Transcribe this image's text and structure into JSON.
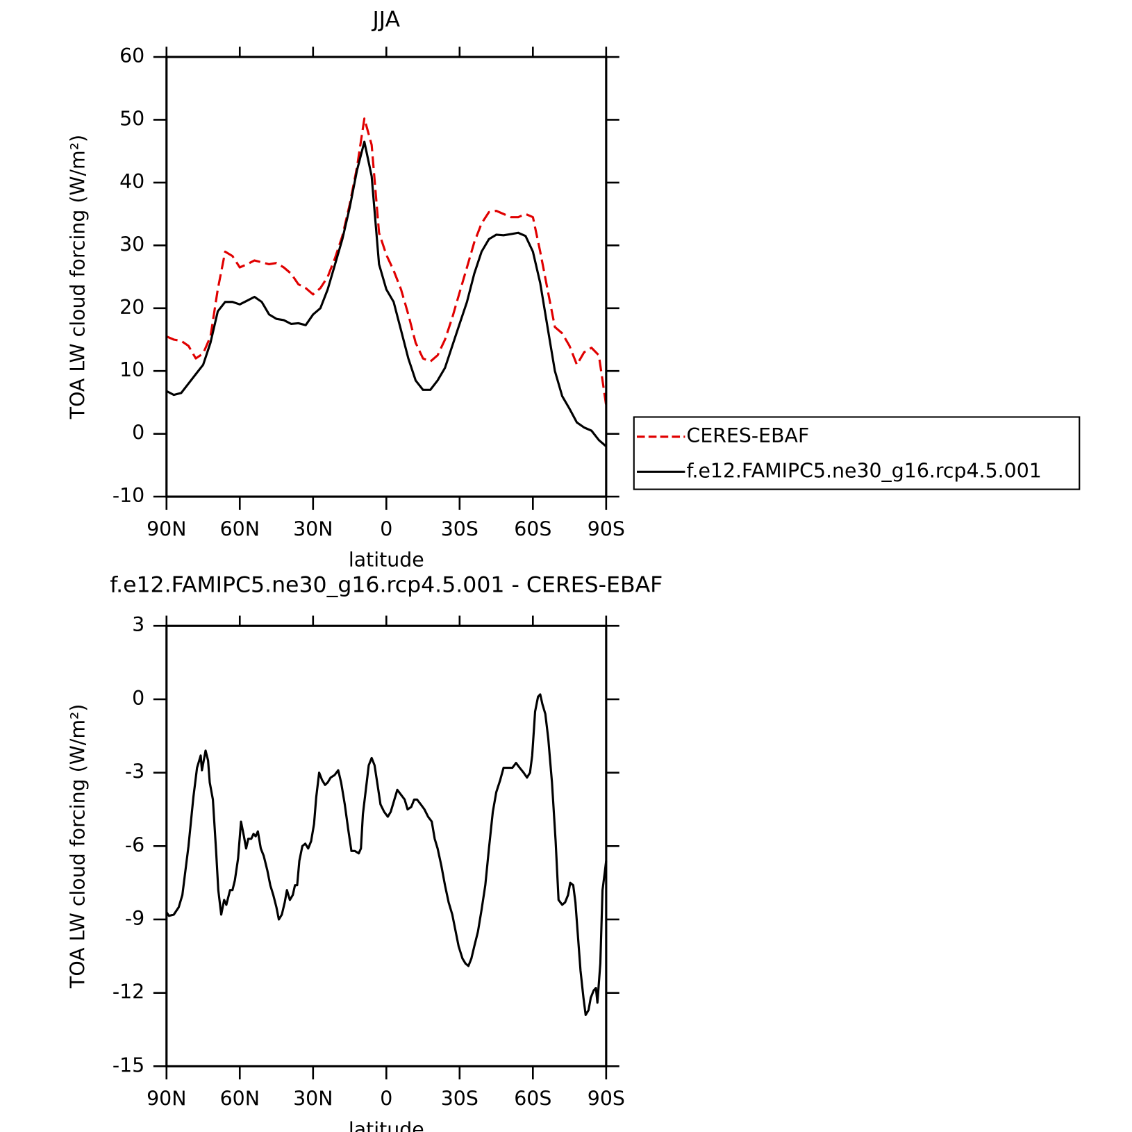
{
  "chart_data": [
    {
      "type": "line",
      "title": "JJA",
      "xlabel": "latitude",
      "ylabel": "TOA LW cloud forcing (W/m²)",
      "xlim": [
        90,
        -90
      ],
      "xticks": [
        {
          "value": 90,
          "label": "90N"
        },
        {
          "value": 60,
          "label": "60N"
        },
        {
          "value": 30,
          "label": "30N"
        },
        0,
        {
          "value": -30,
          "label": "30S"
        },
        {
          "value": -60,
          "label": "60S"
        },
        {
          "value": -90,
          "label": "90S"
        }
      ],
      "ylim": [
        -10,
        60
      ],
      "yticks": [
        -10,
        0,
        10,
        20,
        30,
        40,
        50,
        60
      ],
      "legend": "right",
      "x": [
        90,
        87,
        84,
        81,
        78,
        75,
        72,
        69,
        66,
        63,
        60,
        57,
        54,
        51,
        48,
        45,
        42,
        39,
        36,
        33,
        30,
        27,
        24,
        21,
        18,
        15,
        12,
        9,
        6,
        3,
        0,
        -3,
        -6,
        -9,
        -12,
        -15,
        -18,
        -21,
        -24,
        -27,
        -30,
        -33,
        -36,
        -39,
        -42,
        -45,
        -48,
        -51,
        -54,
        -57,
        -60,
        -63,
        -66,
        -69,
        -72,
        -75,
        -78,
        -81,
        -84,
        -87,
        -90
      ],
      "series": [
        {
          "name": "CERES-EBAF",
          "color": "#e00000",
          "dashed": true,
          "values": [
            15.5,
            15,
            14.8,
            14,
            12,
            12.8,
            15.5,
            23,
            29,
            28.3,
            26.5,
            27,
            27.6,
            27.3,
            27,
            27.2,
            26.5,
            25.5,
            23.8,
            23.2,
            22.2,
            23.2,
            25,
            28,
            31.5,
            36.5,
            42.5,
            50.2,
            46,
            32,
            28.5,
            26,
            23,
            19,
            14.5,
            12,
            11.5,
            12.5,
            15,
            18.5,
            22.5,
            26.5,
            30.5,
            33.5,
            35.3,
            35.5,
            35,
            34.5,
            34.5,
            35,
            34.5,
            29,
            23,
            17,
            16,
            14,
            11,
            13,
            13.7,
            12.5,
            4.5
          ]
        },
        {
          "name": "f.e12.FAMIPC5.ne30_g16.rcp4.5.001",
          "color": "#000000",
          "dashed": false,
          "values": [
            6.8,
            6.2,
            6.5,
            8,
            9.5,
            11,
            14.5,
            19.5,
            21,
            21,
            20.6,
            21.2,
            21.8,
            21,
            19,
            18.3,
            18.1,
            17.5,
            17.6,
            17.3,
            19,
            20,
            23,
            27,
            31,
            36,
            42,
            46.5,
            41,
            27,
            23,
            21,
            16.5,
            12,
            8.5,
            7,
            7,
            8.5,
            10.5,
            14,
            17.5,
            21,
            25.5,
            29,
            31,
            31.7,
            31.6,
            31.8,
            32,
            31.5,
            29,
            24,
            17,
            10,
            6,
            4,
            1.8,
            1,
            0.5,
            -1,
            -2
          ]
        }
      ]
    },
    {
      "type": "line",
      "title": "f.e12.FAMIPC5.ne30_g16.rcp4.5.001 - CERES-EBAF",
      "xlabel": "latitude",
      "ylabel": "TOA LW cloud forcing (W/m²)",
      "xlim": [
        90,
        -90
      ],
      "xticks": [
        {
          "value": 90,
          "label": "90N"
        },
        {
          "value": 60,
          "label": "60N"
        },
        {
          "value": 30,
          "label": "30N"
        },
        0,
        {
          "value": -30,
          "label": "30S"
        },
        {
          "value": -60,
          "label": "60S"
        },
        {
          "value": -90,
          "label": "90S"
        }
      ],
      "ylim": [
        -15,
        3
      ],
      "yticks": [
        -15,
        -12,
        -9,
        -6,
        -3,
        0,
        3
      ],
      "color": "#000000",
      "x": [
        90,
        89,
        87,
        85,
        83.5,
        81,
        79,
        77.5,
        76,
        75.5,
        74,
        73,
        72.3,
        71,
        69.7,
        68.8,
        67.6,
        66.4,
        65.5,
        64,
        63,
        62,
        60.7,
        59.5,
        58.3,
        57.4,
        56.5,
        55.3,
        54.4,
        53.5,
        52.6,
        51.4,
        50.2,
        48.7,
        47.5,
        46.3,
        45,
        44,
        42.8,
        41.6,
        40.7,
        39.5,
        38.3,
        37.4,
        36.5,
        35.6,
        34.4,
        33.2,
        32,
        30.8,
        29.6,
        28.7,
        27.5,
        26.3,
        25.1,
        24,
        22.8,
        21.2,
        19.7,
        18.5,
        17,
        15.5,
        14.3,
        12.9,
        11.3,
        10.4,
        9.6,
        8.4,
        7.2,
        6,
        4.8,
        3.6,
        2.4,
        0.9,
        -0.6,
        -1.8,
        -3,
        -4.5,
        -6,
        -7.5,
        -8.7,
        -10.2,
        -11.4,
        -12.6,
        -14.1,
        -15.6,
        -17.1,
        -18.6,
        -19.8,
        -21,
        -22.5,
        -24,
        -25.5,
        -27,
        -28.2,
        -29.6,
        -31.2,
        -32.4,
        -33.6,
        -34.8,
        -36,
        -37.5,
        -39,
        -40.5,
        -42,
        -43.6,
        -45,
        -46.6,
        -48,
        -49.6,
        -51.6,
        -53.1,
        -54.6,
        -56.2,
        -57.6,
        -58.8,
        -59.7,
        -60.9,
        -62.1,
        -63,
        -63.9,
        -65.1,
        -66.3,
        -67.8,
        -69.3,
        -70.5,
        -72,
        -73.2,
        -74.4,
        -75.3,
        -76.5,
        -77.4,
        -78.3,
        -79.5,
        -80.7,
        -81.6,
        -82.8,
        -83.7,
        -84.9,
        -85.8,
        -86.4,
        -87.6,
        -88.5,
        -89.4,
        -90
      ],
      "values": [
        -8.7,
        -8.85,
        -8.8,
        -8.5,
        -8,
        -6,
        -4,
        -2.8,
        -2.3,
        -2.9,
        -2.1,
        -2.5,
        -3.4,
        -4.1,
        -6.2,
        -7.8,
        -8.8,
        -8.2,
        -8.4,
        -7.8,
        -7.8,
        -7.4,
        -6.5,
        -5,
        -5.6,
        -6.1,
        -5.7,
        -5.7,
        -5.5,
        -5.6,
        -5.4,
        -6.1,
        -6.4,
        -7,
        -7.6,
        -8,
        -8.5,
        -9,
        -8.8,
        -8.3,
        -7.8,
        -8.2,
        -8,
        -7.6,
        -7.6,
        -6.6,
        -6,
        -5.9,
        -6.1,
        -5.8,
        -5.1,
        -4,
        -3,
        -3.3,
        -3.5,
        -3.4,
        -3.2,
        -3.1,
        -2.9,
        -3.4,
        -4.3,
        -5.4,
        -6.2,
        -6.2,
        -6.3,
        -6.1,
        -4.7,
        -3.7,
        -2.7,
        -2.4,
        -2.7,
        -3.5,
        -4.3,
        -4.6,
        -4.8,
        -4.6,
        -4.2,
        -3.7,
        -3.9,
        -4.1,
        -4.5,
        -4.4,
        -4.1,
        -4.1,
        -4.3,
        -4.5,
        -4.8,
        -5,
        -5.7,
        -6.1,
        -6.8,
        -7.6,
        -8.3,
        -8.8,
        -9.4,
        -10.1,
        -10.6,
        -10.8,
        -10.9,
        -10.6,
        -10.1,
        -9.5,
        -8.6,
        -7.6,
        -6.1,
        -4.6,
        -3.8,
        -3.3,
        -2.8,
        -2.8,
        -2.8,
        -2.6,
        -2.8,
        -3,
        -3.2,
        -3,
        -2.3,
        -0.5,
        0.1,
        0.2,
        -0.2,
        -0.6,
        -1.6,
        -3.4,
        -5.8,
        -8.2,
        -8.4,
        -8.3,
        -8,
        -7.5,
        -7.6,
        -8.3,
        -9.5,
        -11.1,
        -12.2,
        -12.9,
        -12.7,
        -12.2,
        -11.9,
        -11.8,
        -12.4,
        -10.8,
        -7.8,
        -7.1,
        -6.6
      ]
    }
  ]
}
